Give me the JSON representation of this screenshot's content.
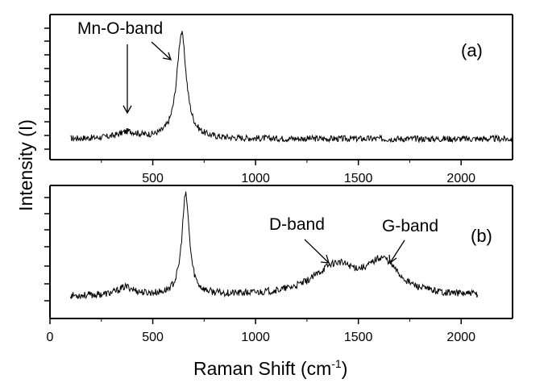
{
  "chart_data": {
    "type": "line",
    "xlabel": "Raman Shift (cm",
    "xlabel_sup": "-1",
    "xlabel_close": ")",
    "ylabel": "Intensity (I)",
    "panels": [
      {
        "id": "a",
        "label": "(a)",
        "xlim": [
          0,
          2250
        ],
        "x_tick_values": [
          500,
          1000,
          1500,
          2000
        ],
        "x_tick_labels": [
          "500",
          "1000",
          "1500",
          "2000"
        ],
        "ylim": [
          0,
          100
        ],
        "series": {
          "name": "(a)",
          "x_range": [
            100,
            2250
          ],
          "baseline": 10,
          "peaks": [
            {
              "center": 380,
              "height": 5,
              "width": 60
            },
            {
              "center": 640,
              "height": 83,
              "width": 28
            }
          ],
          "noise": 2.5
        },
        "annotations": [
          {
            "text": "Mn-O-band",
            "target_x": 380,
            "target_y": 30
          },
          {
            "target_x": 600,
            "target_y": 72
          }
        ]
      },
      {
        "id": "b",
        "label": "(b)",
        "xlim": [
          0,
          2250
        ],
        "x_tick_values": [
          0,
          500,
          1000,
          1500,
          2000
        ],
        "x_tick_labels": [
          "0",
          "500",
          "1000",
          "1500",
          "2000"
        ],
        "ylim": [
          0,
          100
        ],
        "series": {
          "name": "(b)",
          "x_range": [
            100,
            2080
          ],
          "baseline": 10,
          "peaks": [
            {
              "center": 370,
              "height": 7,
              "width": 50
            },
            {
              "center": 660,
              "height": 85,
              "width": 22
            },
            {
              "center": 1390,
              "height": 25,
              "width": 130
            },
            {
              "center": 1620,
              "height": 27,
              "width": 90
            }
          ],
          "noise": 3
        },
        "annotations": [
          {
            "text": "D-band",
            "target_x": 1380,
            "target_y": 42
          },
          {
            "text": "G-band",
            "target_x": 1650,
            "target_y": 40
          }
        ]
      }
    ]
  }
}
